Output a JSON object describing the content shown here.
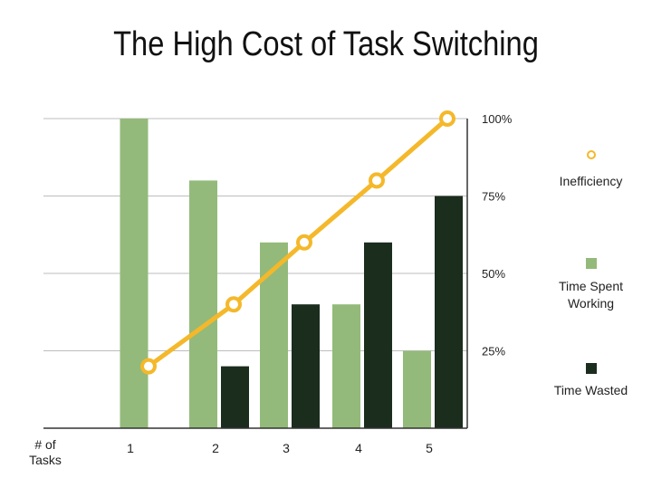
{
  "title": "The High Cost of Task Switching",
  "colors": {
    "working": "#93BA7A",
    "wasted": "#1B2D1D",
    "inefficiency": "#F4B82A",
    "grid": "#BDBDBD",
    "axis": "#333333"
  },
  "chart_data": {
    "type": "bar",
    "title": "The High Cost of Task Switching",
    "xlabel": "# of Tasks",
    "ylabel": "",
    "categories": [
      "1",
      "2",
      "3",
      "4",
      "5"
    ],
    "ylim": [
      0,
      100
    ],
    "y_ticks": [
      "25%",
      "50%",
      "75%",
      "100%"
    ],
    "y_axis_side": "right",
    "grid": true,
    "legend_position": "right",
    "series": [
      {
        "name": "Time Spent Working",
        "kind": "bar",
        "color": "#93BA7A",
        "values": [
          100,
          80,
          60,
          40,
          25
        ]
      },
      {
        "name": "Time Wasted",
        "kind": "bar",
        "color": "#1B2D1D",
        "values": [
          0,
          20,
          40,
          60,
          75
        ]
      },
      {
        "name": "Inefficiency",
        "kind": "line",
        "color": "#F4B82A",
        "values": [
          20,
          40,
          60,
          80,
          100
        ]
      }
    ]
  },
  "legend": {
    "inefficiency": "Inefficiency",
    "working": "Time Spent Working",
    "wasted": "Time Wasted"
  }
}
